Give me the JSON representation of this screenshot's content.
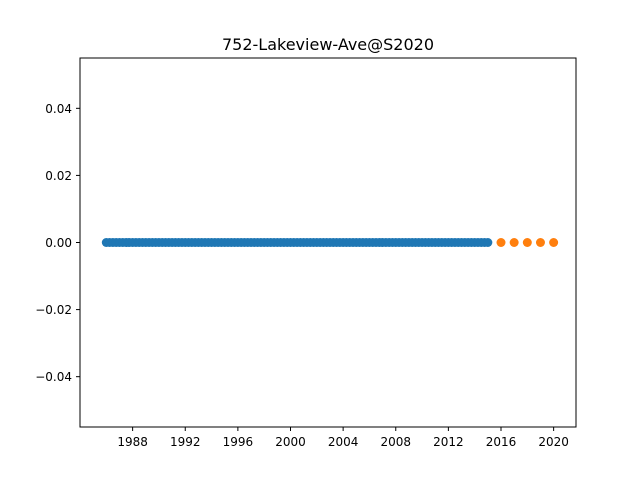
{
  "chart_data": {
    "type": "scatter",
    "title": "752-Lakeview-Ave@S2020",
    "xlabel": "",
    "ylabel": "",
    "xlim": [
      1984.0,
      2021.7
    ],
    "ylim": [
      -0.055,
      0.055
    ],
    "x_ticks": [
      1988,
      1992,
      1996,
      2000,
      2004,
      2008,
      2012,
      2016,
      2020
    ],
    "x_tick_labels": [
      "1988",
      "1992",
      "1996",
      "2000",
      "2004",
      "2008",
      "2012",
      "2016",
      "2020"
    ],
    "y_ticks": [
      0.04,
      0.02,
      0.0,
      -0.02,
      -0.04
    ],
    "y_tick_labels": [
      "0.04",
      "0.02",
      "0.00",
      "−0.02",
      "−0.04"
    ],
    "grid": false,
    "series": [
      {
        "color": "#1f77b4",
        "x_start": 1986.0,
        "x_end": 2015.0,
        "x_step": 0.25,
        "y": 0.0
      },
      {
        "color": "#ff7f0e",
        "x": [
          2016,
          2017,
          2018,
          2019,
          2020
        ],
        "y": [
          0,
          0,
          0,
          0,
          0
        ]
      }
    ]
  }
}
